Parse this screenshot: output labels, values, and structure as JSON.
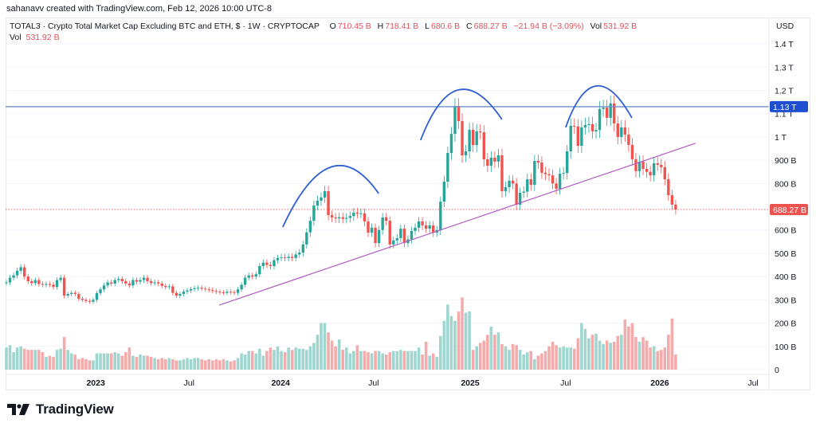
{
  "credit": "sahanavv created with TradingView.com, Feb 12, 2026 10:00 UTC-8",
  "legend": {
    "symbol": "TOTAL3 · Crypto Total Market Cap Excluding BTC and ETH, $ · 1W · CRYPTOCAP",
    "open_label": "O",
    "open": "710.45 B",
    "high_label": "H",
    "high": "718.41 B",
    "low_label": "L",
    "low": "680.6 B",
    "close_label": "C",
    "close": "688.27 B",
    "change": "−21.94 B (−3.09%)",
    "vol_label": "Vol",
    "vol": "531.92 B"
  },
  "volume_legend": {
    "label": "Vol",
    "value": "531.92 B"
  },
  "brand": "TradingView",
  "colors": {
    "up": "#26a69a",
    "down": "#ef5350",
    "vol_up": "#9fd6cf",
    "vol_down": "#f4abab",
    "arc": "#2f5fd0",
    "trendline": "#b05cc4",
    "resistance": "#6f8fc8",
    "last_price": "#ef5350",
    "resistance_badge": "#1f4fd1"
  },
  "chart_data": {
    "type": "candlestick",
    "interval": "1W",
    "y_unit": "USD",
    "ylim": [
      0,
      1400
    ],
    "grid": true,
    "y_ticks": [
      {
        "value": 0,
        "label": "0"
      },
      {
        "value": 100,
        "label": "100 B"
      },
      {
        "value": 200,
        "label": "200 B"
      },
      {
        "value": 300,
        "label": "300 B"
      },
      {
        "value": 400,
        "label": "400 B"
      },
      {
        "value": 500,
        "label": "500 B"
      },
      {
        "value": 600,
        "label": "600 B"
      },
      {
        "value": 800,
        "label": "800 B"
      },
      {
        "value": 900,
        "label": "900 B"
      },
      {
        "value": 1000,
        "label": "1 T"
      },
      {
        "value": 1100,
        "label": "1.1 T"
      },
      {
        "value": 1200,
        "label": "1.2 T"
      },
      {
        "value": 1300,
        "label": "1.3 T"
      },
      {
        "value": 1400,
        "label": "1.4 T"
      }
    ],
    "x_ticks": [
      "2023",
      "Jul",
      "2024",
      "Jul",
      "2025",
      "Jul",
      "2026",
      "Jul"
    ],
    "close_B": [
      375,
      395,
      405,
      425,
      440,
      400,
      380,
      372,
      385,
      368,
      365,
      368,
      365,
      355,
      385,
      395,
      318,
      325,
      330,
      325,
      305,
      300,
      295,
      292,
      300,
      329,
      345,
      362,
      375,
      370,
      385,
      390,
      380,
      370,
      362,
      385,
      378,
      385,
      395,
      380,
      372,
      375,
      370,
      360,
      355,
      358,
      330,
      318,
      325,
      335,
      340,
      346,
      350,
      352,
      348,
      345,
      342,
      338,
      335,
      332,
      330,
      335,
      333,
      330,
      345,
      365,
      395,
      405,
      400,
      410,
      445,
      460,
      450,
      445,
      470,
      480,
      483,
      480,
      485,
      480,
      495,
      503,
      538,
      590,
      640,
      705,
      726,
      740,
      767,
      664,
      654,
      650,
      655,
      648,
      652,
      660,
      675,
      670,
      672,
      637,
      589,
      610,
      544,
      600,
      654,
      640,
      538,
      555,
      565,
      606,
      544,
      560,
      596,
      610,
      637,
      620,
      606,
      620,
      589,
      600,
      722,
      808,
      931,
      1013,
      1133,
      1068,
      921,
      938,
      1031,
      965,
      1024,
      1020,
      904,
      876,
      911,
      894,
      921,
      767,
      784,
      812,
      800,
      709,
      760,
      765,
      818,
      794,
      897,
      890,
      846,
      840,
      835,
      800,
      777,
      842,
      845,
      938,
      1048,
      1045,
      962,
      1041,
      1051,
      1055,
      1024,
      1030,
      1120,
      1126,
      1082,
      1144,
      1058,
      1000,
      1041,
      1010,
      966,
      904,
      853,
      894,
      863,
      850,
      835,
      887,
      880,
      870,
      818,
      750,
      709,
      688.27
    ],
    "volume_B": [
      95,
      105,
      75,
      95,
      100,
      90,
      85,
      85,
      85,
      85,
      75,
      55,
      60,
      55,
      85,
      90,
      140,
      85,
      70,
      65,
      45,
      50,
      45,
      40,
      40,
      70,
      70,
      70,
      70,
      70,
      75,
      70,
      60,
      75,
      95,
      60,
      55,
      65,
      60,
      60,
      55,
      50,
      45,
      50,
      45,
      50,
      45,
      40,
      40,
      45,
      50,
      45,
      50,
      50,
      45,
      40,
      45,
      40,
      45,
      40,
      45,
      40,
      35,
      40,
      50,
      70,
      65,
      80,
      80,
      70,
      90,
      60,
      80,
      95,
      85,
      100,
      80,
      75,
      95,
      85,
      95,
      90,
      90,
      85,
      100,
      115,
      150,
      200,
      200,
      160,
      125,
      100,
      130,
      85,
      95,
      70,
      80,
      105,
      80,
      80,
      75,
      70,
      80,
      80,
      70,
      65,
      75,
      80,
      80,
      85,
      80,
      80,
      80,
      80,
      95,
      65,
      120,
      60,
      70,
      55,
      145,
      210,
      280,
      230,
      210,
      250,
      310,
      245,
      250,
      85,
      100,
      115,
      125,
      150,
      185,
      150,
      160,
      110,
      100,
      85,
      110,
      105,
      85,
      65,
      75,
      80,
      45,
      60,
      70,
      80,
      100,
      120,
      105,
      95,
      100,
      95,
      95,
      90,
      135,
      200,
      175,
      135,
      150,
      155,
      125,
      110,
      125,
      115,
      120,
      145,
      150,
      215,
      185,
      200,
      140,
      120,
      140,
      125,
      95,
      100,
      80,
      85,
      95,
      150,
      220,
      65
    ],
    "last_price": {
      "value": 688.27,
      "label": "688.27 B"
    },
    "resistance": {
      "value": 1130,
      "label": "1.13 T"
    },
    "trendline": {
      "from": {
        "week": 58.8,
        "value": 277
      },
      "to": {
        "week": 190.5,
        "value": 973
      }
    },
    "arcs": [
      {
        "start": {
          "week": 76.4,
          "value": 613
        },
        "peak": {
          "week": 89.6,
          "value": 870
        },
        "end": {
          "week": 102.9,
          "value": 757
        }
      },
      {
        "start": {
          "week": 114.5,
          "value": 986
        },
        "peak": {
          "week": 124.9,
          "value": 1202
        },
        "end": {
          "week": 137,
          "value": 1075
        }
      },
      {
        "start": {
          "week": 154.6,
          "value": 1041
        },
        "peak": {
          "week": 163,
          "value": 1219
        },
        "end": {
          "week": 172.9,
          "value": 1082
        }
      }
    ]
  }
}
